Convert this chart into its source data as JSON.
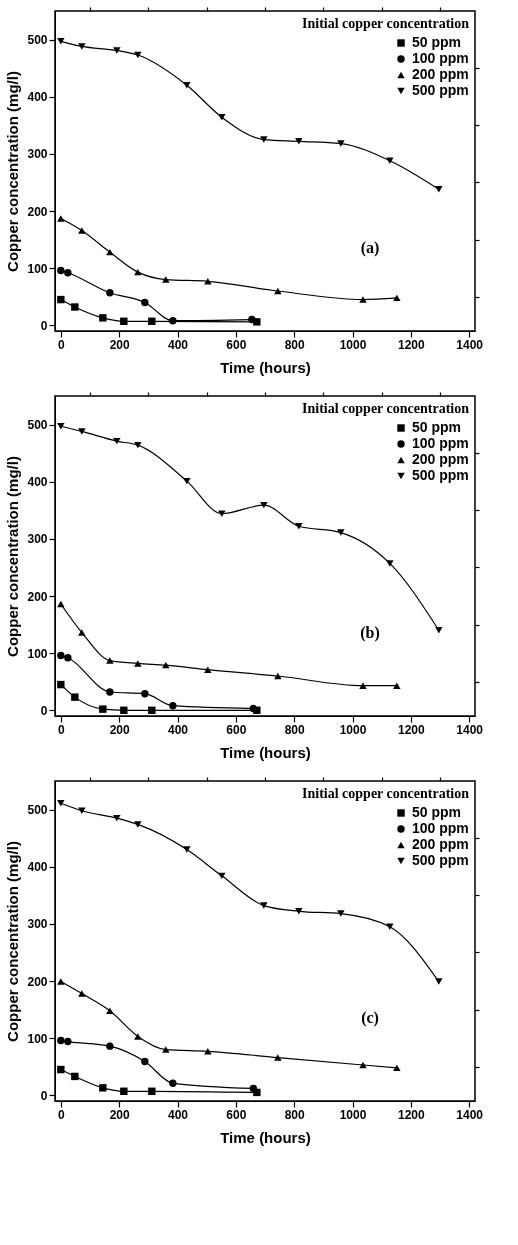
{
  "chart_data": [
    {
      "type": "line",
      "xlabel": "Time (hours)",
      "ylabel": "Copper concentration (mg/l)",
      "legend_title": "Initial copper concentration",
      "legend": "top right",
      "xlim": [
        -20,
        1420
      ],
      "ylim": [
        -10,
        550
      ],
      "xticks": [
        0,
        {
          "value": 100,
          "label": null
        },
        200,
        {
          "value": 300,
          "label": null
        },
        400,
        {
          "value": 500,
          "label": null
        },
        600,
        {
          "value": 700,
          "label": null
        },
        800,
        {
          "value": 900,
          "label": null
        },
        1000,
        {
          "value": 1100,
          "label": null
        },
        1200,
        {
          "value": 1300,
          "label": null
        },
        1400
      ],
      "yticks": [
        0,
        {
          "value": 50,
          "label": null
        },
        100,
        {
          "value": 150,
          "label": null
        },
        200,
        {
          "value": 250,
          "label": null
        },
        300,
        {
          "value": 350,
          "label": null
        },
        400,
        {
          "value": 450,
          "label": null
        },
        500
      ],
      "annotations": [
        "(a)"
      ],
      "series": [
        {
          "name": "50 ppm",
          "color": "#000000",
          "marker": "square",
          "x": [
            0,
            48,
            144,
            216,
            312,
            672
          ],
          "values": [
            45,
            32,
            13,
            7,
            7,
            6
          ]
        },
        {
          "name": "100 ppm",
          "color": "#000000",
          "marker": "circle",
          "x": [
            0,
            24,
            168,
            288,
            384,
            655
          ],
          "values": [
            96,
            92,
            57,
            40,
            8,
            10
          ]
        },
        {
          "name": "200 ppm",
          "color": "#000000",
          "marker": "triangle",
          "x": [
            0,
            72,
            168,
            264,
            360,
            504,
            744,
            1036,
            1152
          ],
          "values": [
            187,
            166,
            128,
            93,
            80,
            77,
            60,
            45,
            48
          ]
        },
        {
          "name": "500 ppm",
          "color": "#000000",
          "marker": "triangle-down",
          "x": [
            0,
            72,
            192,
            264,
            432,
            552,
            696,
            816,
            960,
            1128,
            1296
          ],
          "values": [
            497,
            488,
            481,
            473,
            420,
            364,
            325,
            322,
            318,
            288,
            238
          ]
        }
      ]
    },
    {
      "type": "line",
      "xlabel": "Time (hours)",
      "ylabel": "Copper concentration (mg/l)",
      "legend_title": "Initial copper concentration",
      "legend": "top right",
      "xlim": [
        -20,
        1420
      ],
      "ylim": [
        -10,
        550
      ],
      "xticks": [
        0,
        {
          "value": 100,
          "label": null
        },
        200,
        {
          "value": 300,
          "label": null
        },
        400,
        {
          "value": 500,
          "label": null
        },
        600,
        {
          "value": 700,
          "label": null
        },
        800,
        {
          "value": 900,
          "label": null
        },
        1000,
        {
          "value": 1100,
          "label": null
        },
        1200,
        {
          "value": 1300,
          "label": null
        },
        1400
      ],
      "yticks": [
        0,
        {
          "value": 50,
          "label": null
        },
        100,
        {
          "value": 150,
          "label": null
        },
        200,
        {
          "value": 250,
          "label": null
        },
        300,
        {
          "value": 350,
          "label": null
        },
        400,
        {
          "value": 450,
          "label": null
        },
        500
      ],
      "annotations": [
        "(b)"
      ],
      "series": [
        {
          "name": "50 ppm",
          "color": "#000000",
          "marker": "square",
          "x": [
            0,
            48,
            144,
            216,
            312,
            672
          ],
          "values": [
            45,
            23,
            2,
            0,
            0,
            0
          ]
        },
        {
          "name": "100 ppm",
          "color": "#000000",
          "marker": "circle",
          "x": [
            0,
            24,
            168,
            288,
            384,
            660
          ],
          "values": [
            96,
            92,
            32,
            29,
            8,
            3
          ]
        },
        {
          "name": "200 ppm",
          "color": "#000000",
          "marker": "triangle",
          "x": [
            0,
            72,
            168,
            264,
            360,
            504,
            744,
            1036,
            1152
          ],
          "values": [
            186,
            136,
            87,
            82,
            79,
            71,
            60,
            43,
            43
          ]
        },
        {
          "name": "500 ppm",
          "color": "#000000",
          "marker": "triangle-down",
          "x": [
            0,
            72,
            192,
            264,
            432,
            552,
            696,
            816,
            960,
            1128,
            1296
          ],
          "values": [
            497,
            488,
            471,
            464,
            401,
            344,
            359,
            322,
            311,
            257,
            140
          ]
        }
      ]
    },
    {
      "type": "line",
      "xlabel": "Time (hours)",
      "ylabel": "Copper concentration (mg/l)",
      "legend_title": "Initial copper concentration",
      "legend": "top right",
      "xlim": [
        -20,
        1420
      ],
      "ylim": [
        -10,
        550
      ],
      "xticks": [
        0,
        {
          "value": 100,
          "label": null
        },
        200,
        {
          "value": 300,
          "label": null
        },
        400,
        {
          "value": 500,
          "label": null
        },
        600,
        {
          "value": 700,
          "label": null
        },
        800,
        {
          "value": 900,
          "label": null
        },
        1000,
        {
          "value": 1100,
          "label": null
        },
        1200,
        {
          "value": 1300,
          "label": null
        },
        1400
      ],
      "yticks": [
        0,
        {
          "value": 50,
          "label": null
        },
        100,
        {
          "value": 150,
          "label": null
        },
        200,
        {
          "value": 250,
          "label": null
        },
        300,
        {
          "value": 350,
          "label": null
        },
        400,
        {
          "value": 450,
          "label": null
        },
        500
      ],
      "annotations": [
        "(c)"
      ],
      "series": [
        {
          "name": "50 ppm",
          "color": "#000000",
          "marker": "square",
          "x": [
            0,
            48,
            144,
            216,
            312,
            672
          ],
          "values": [
            45,
            33,
            13,
            7,
            7,
            5
          ]
        },
        {
          "name": "100 ppm",
          "color": "#000000",
          "marker": "circle",
          "x": [
            0,
            24,
            168,
            288,
            384,
            660
          ],
          "values": [
            96,
            94,
            86,
            59,
            21,
            12
          ]
        },
        {
          "name": "200 ppm",
          "color": "#000000",
          "marker": "triangle",
          "x": [
            0,
            72,
            168,
            264,
            360,
            504,
            744,
            1036,
            1152
          ],
          "values": [
            199,
            178,
            148,
            103,
            80,
            77,
            66,
            53,
            48
          ]
        },
        {
          "name": "500 ppm",
          "color": "#000000",
          "marker": "triangle-down",
          "x": [
            0,
            72,
            192,
            264,
            432,
            552,
            696,
            816,
            960,
            1128,
            1296
          ],
          "values": [
            511,
            498,
            485,
            474,
            430,
            384,
            332,
            322,
            318,
            295,
            199
          ]
        }
      ]
    }
  ]
}
